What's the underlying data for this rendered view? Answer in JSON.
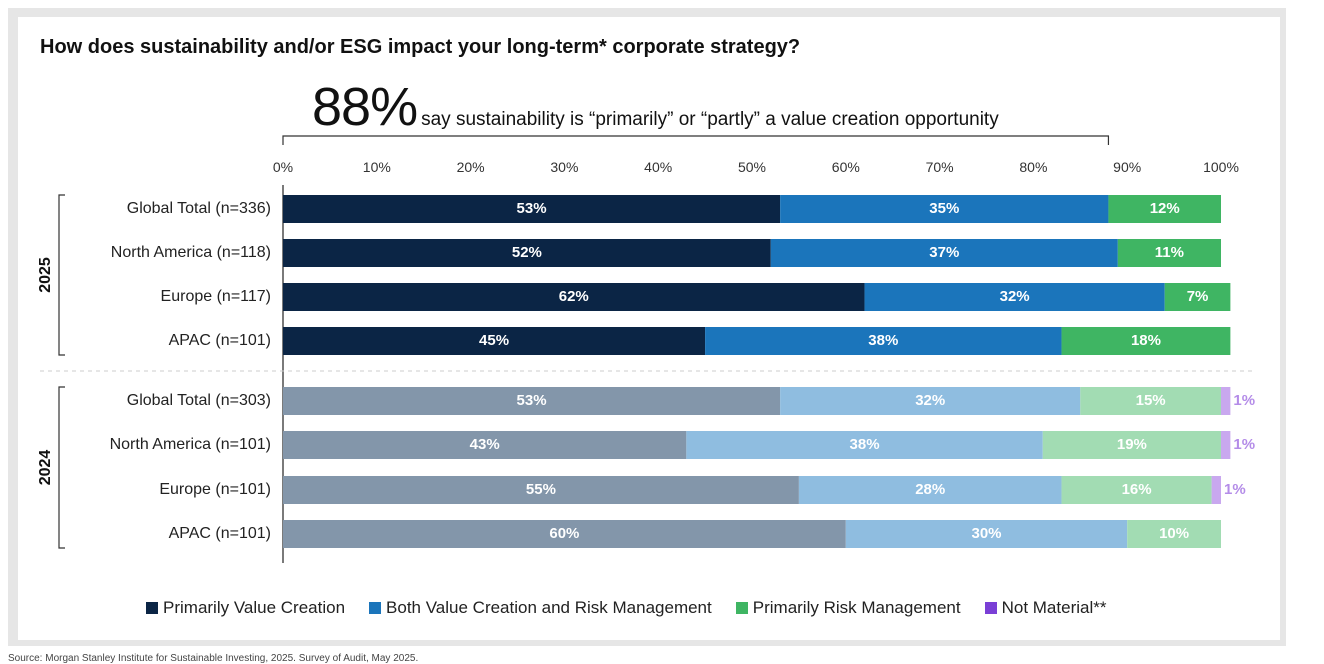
{
  "title": "How does sustainability and/or ESG impact your long-term* corporate strategy?",
  "headline": {
    "big": "88%",
    "rest": "say sustainability is “primarily” or “partly” a value creation opportunity",
    "bracket_to": 88
  },
  "footnote": "Source: Morgan Stanley Institute for Sustainable Investing, 2025. Survey of Audit, May 2025.",
  "chart_data": {
    "type": "bar",
    "orientation": "horizontal",
    "stacked": true,
    "xlim": [
      0,
      100
    ],
    "x_ticks": [
      "0%",
      "10%",
      "20%",
      "30%",
      "40%",
      "50%",
      "60%",
      "70%",
      "80%",
      "90%",
      "100%"
    ],
    "groups": [
      {
        "label": "2025",
        "palette": [
          "#0b2545",
          "#1b75bb",
          "#3fb563",
          "#7a3fd6"
        ],
        "label_colors": [
          "#ffffff",
          "#ffffff",
          "#ffffff",
          "#ffffff"
        ],
        "rows": [
          {
            "label": "Global Total (n=336)",
            "values": [
              53,
              35,
              12,
              0
            ]
          },
          {
            "label": "North America (n=118)",
            "values": [
              52,
              37,
              11,
              0
            ]
          },
          {
            "label": "Europe (n=117)",
            "values": [
              62,
              32,
              7,
              0
            ]
          },
          {
            "label": "APAC (n=101)",
            "values": [
              45,
              38,
              18,
              0
            ]
          }
        ]
      },
      {
        "label": "2024",
        "palette": [
          "#8396aa",
          "#8fbde0",
          "#a2dcb3",
          "#c9a8ef"
        ],
        "label_colors": [
          "#ffffff",
          "#ffffff",
          "#ffffff",
          "#b48ce8"
        ],
        "rows": [
          {
            "label": "Global Total (n=303)",
            "values": [
              53,
              32,
              15,
              1
            ]
          },
          {
            "label": "North America (n=101)",
            "values": [
              43,
              38,
              19,
              1
            ]
          },
          {
            "label": "Europe (n=101)",
            "values": [
              55,
              28,
              16,
              1
            ]
          },
          {
            "label": "APAC (n=101)",
            "values": [
              60,
              30,
              10,
              0
            ]
          }
        ]
      }
    ],
    "series": [
      {
        "name": "Primarily Value Creation",
        "color": "#0b2545"
      },
      {
        "name": "Both Value Creation and Risk Management",
        "color": "#1b75bb"
      },
      {
        "name": "Primarily Risk Management",
        "color": "#3fb563"
      },
      {
        "name": "Not Material**",
        "color": "#7a3fd6"
      }
    ]
  }
}
